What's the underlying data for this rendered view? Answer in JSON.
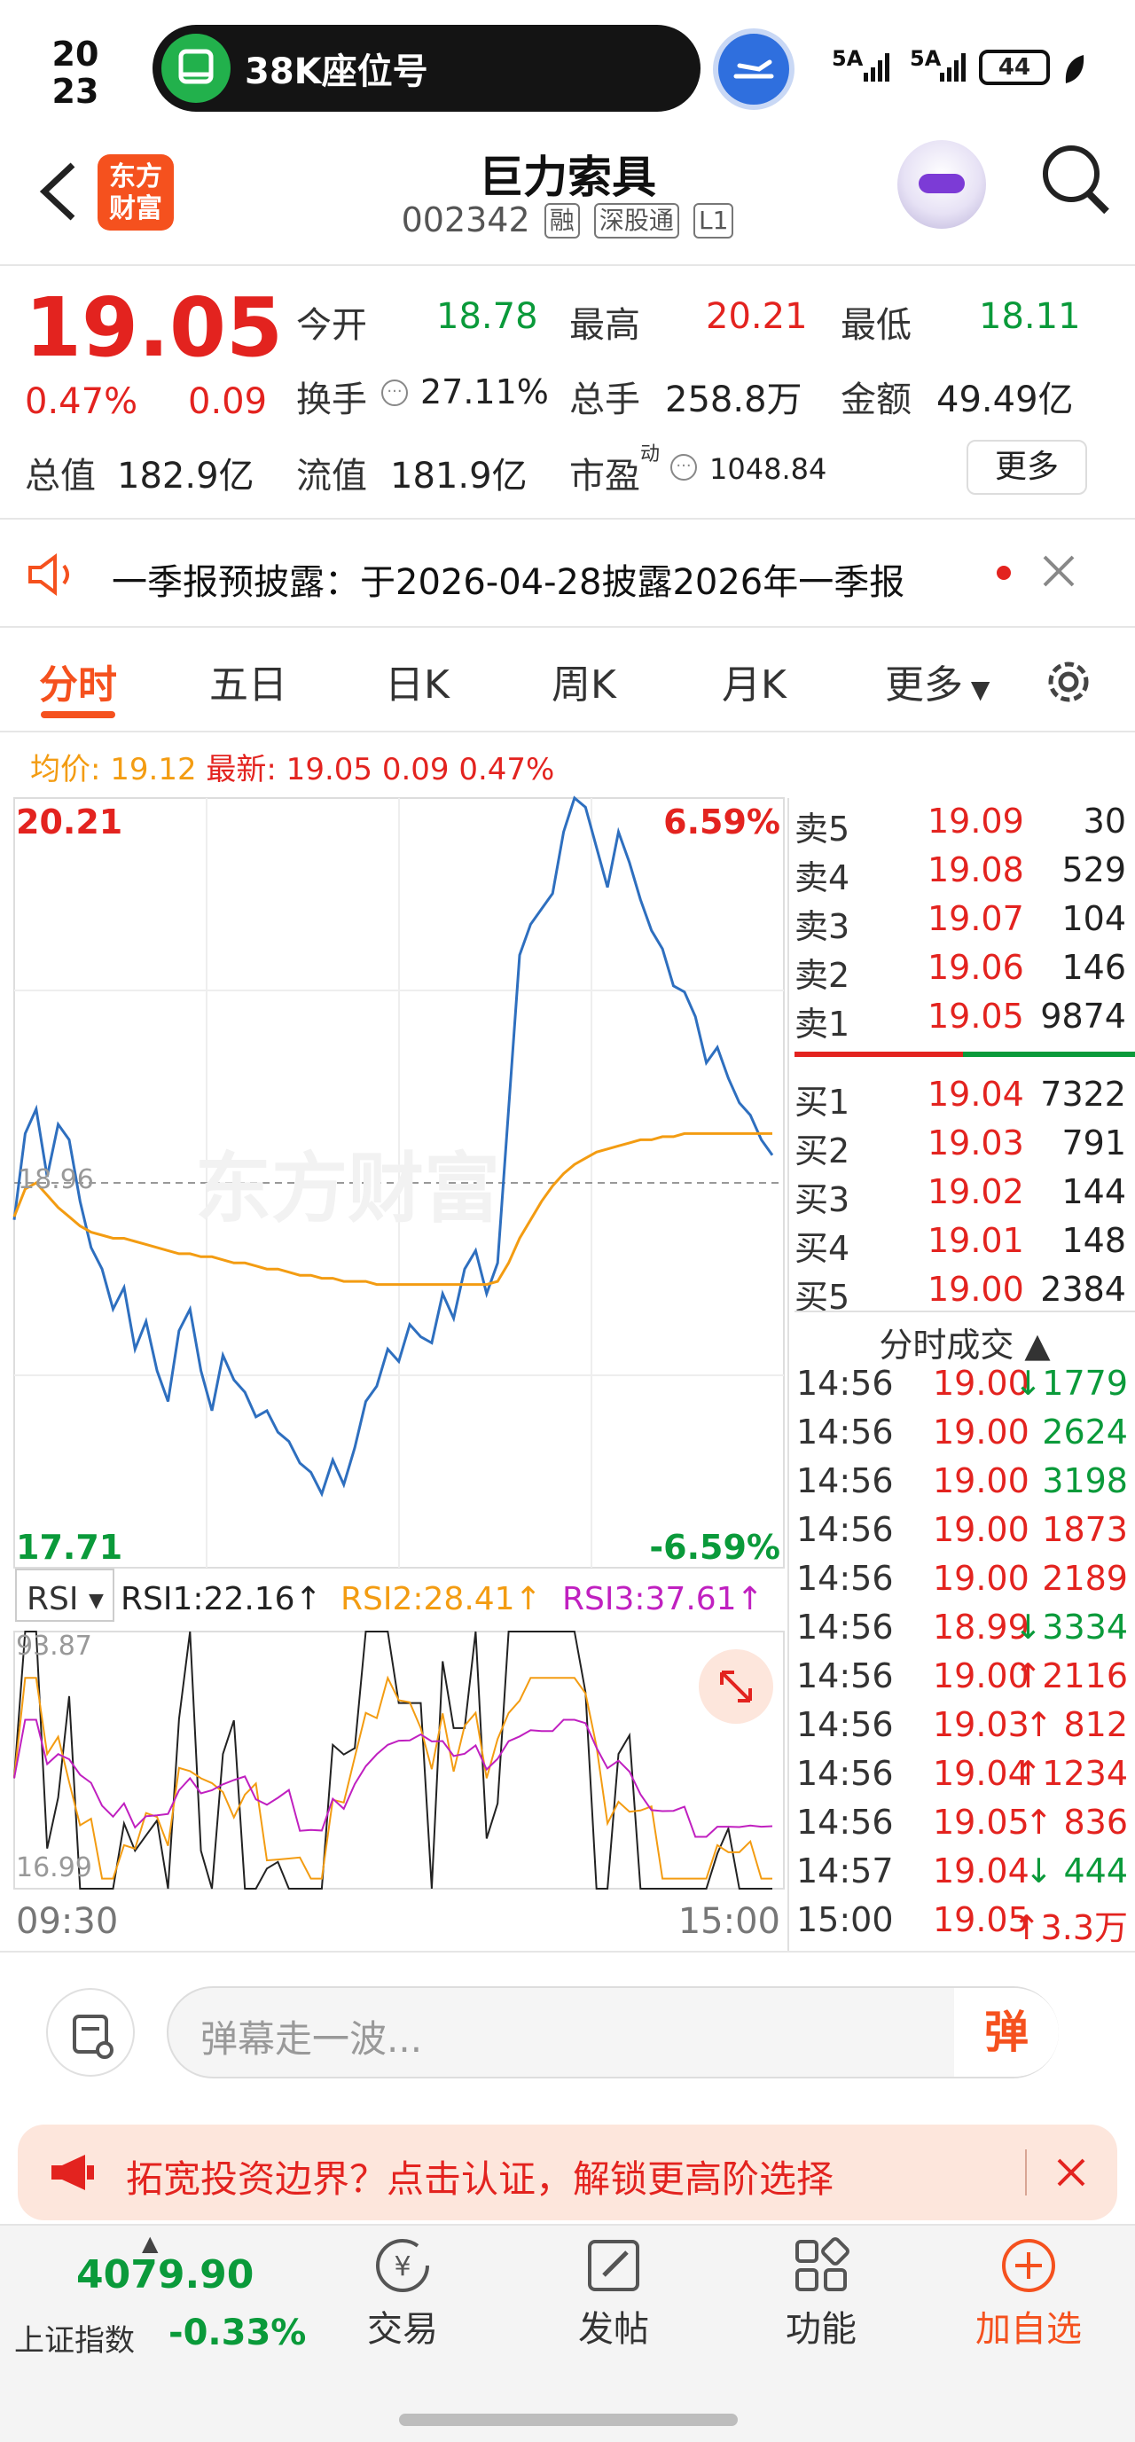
{
  "status_bar": {
    "time_hour": "20",
    "time_min": "23",
    "pill_text": "38K座位号",
    "signal1": "5A",
    "signal2": "5A",
    "battery": "44"
  },
  "header": {
    "logo_line1": "东方",
    "logo_line2": "财富",
    "stock_name": "巨力索具",
    "stock_code": "002342",
    "tags": [
      "融",
      "深股通",
      "L1"
    ]
  },
  "quote": {
    "price": "19.05",
    "change_pct": "0.47%",
    "change": "0.09",
    "open_label": "今开",
    "open": "18.78",
    "high_label": "最高",
    "high": "20.21",
    "low_label": "最低",
    "low": "18.11",
    "turnover_label": "换手",
    "turnover": "27.11%",
    "volume_label": "总手",
    "volume": "258.8万",
    "amount_label": "金额",
    "amount": "49.49亿",
    "mktcap_label": "总值",
    "mktcap": "182.9亿",
    "float_label": "流值",
    "float": "181.9亿",
    "pe_label": "市盈",
    "pe_sup": "动",
    "pe": "1048.84",
    "more": "更多"
  },
  "notice": {
    "text": "一季报预披露：于2026-04-28披露2026年一季报"
  },
  "tabs": {
    "t1": "分时",
    "t2": "五日",
    "t3": "日K",
    "t4": "周K",
    "t5": "月K",
    "t6": "更多"
  },
  "legend": {
    "avg_label": "均价: 19.12",
    "latest_label": "最新: 19.05 0.09 0.47%"
  },
  "chart_data": {
    "type": "line",
    "title": "",
    "x_ticks": [
      "09:30",
      "15:00"
    ],
    "ylim": [
      17.71,
      20.21
    ],
    "y_top_label": "20.21",
    "y_bottom_label": "17.71",
    "y_mid_label": "18.96",
    "pct_top": "6.59%",
    "pct_bottom": "-6.59%",
    "watermark": "东方财富",
    "series": [
      {
        "values": [
          18.84,
          19.12,
          19.2,
          18.98,
          19.15,
          19.1,
          18.9,
          18.75,
          18.68,
          18.55,
          18.62,
          18.42,
          18.51,
          18.35,
          18.25,
          18.48,
          18.55,
          18.35,
          18.22,
          18.4,
          18.32,
          18.28,
          18.2,
          18.22,
          18.15,
          18.12,
          18.05,
          18.02,
          17.95,
          18.06,
          17.98,
          18.1,
          18.25,
          18.3,
          18.42,
          18.38,
          18.5,
          18.46,
          18.44,
          18.6,
          18.52,
          18.68,
          18.74,
          18.6,
          18.7,
          19.2,
          19.7,
          19.8,
          19.85,
          19.9,
          20.1,
          20.21,
          20.18,
          20.05,
          19.92,
          20.1,
          20.0,
          19.88,
          19.78,
          19.72,
          19.6,
          19.58,
          19.5,
          19.35,
          19.4,
          19.3,
          19.22,
          19.18,
          19.1,
          19.05
        ]
      },
      {
        "values": [
          18.85,
          18.94,
          18.96,
          18.92,
          18.88,
          18.85,
          18.82,
          18.8,
          18.79,
          18.78,
          18.78,
          18.77,
          18.76,
          18.75,
          18.74,
          18.73,
          18.73,
          18.72,
          18.72,
          18.71,
          18.7,
          18.7,
          18.69,
          18.68,
          18.68,
          18.67,
          18.66,
          18.66,
          18.65,
          18.65,
          18.64,
          18.64,
          18.64,
          18.63,
          18.63,
          18.63,
          18.63,
          18.63,
          18.63,
          18.63,
          18.63,
          18.63,
          18.63,
          18.63,
          18.64,
          18.7,
          18.78,
          18.84,
          18.9,
          18.95,
          18.99,
          19.02,
          19.04,
          19.06,
          19.07,
          19.08,
          19.09,
          19.1,
          19.1,
          19.11,
          19.11,
          19.12,
          19.12,
          19.12,
          19.12,
          19.12,
          19.12,
          19.12,
          19.12,
          19.12
        ]
      }
    ]
  },
  "rsi": {
    "selector": "RSI",
    "rsi1": "RSI1:22.16↑",
    "rsi2": "RSI2:28.41↑",
    "rsi3": "RSI3:37.61↑",
    "top": "93.87",
    "bottom": "16.99",
    "start": "09:30",
    "end": "15:00"
  },
  "orderbook": {
    "asks": [
      {
        "label": "卖5",
        "price": "19.09",
        "vol": "30"
      },
      {
        "label": "卖4",
        "price": "19.08",
        "vol": "529"
      },
      {
        "label": "卖3",
        "price": "19.07",
        "vol": "104"
      },
      {
        "label": "卖2",
        "price": "19.06",
        "vol": "146"
      },
      {
        "label": "卖1",
        "price": "19.05",
        "vol": "9874"
      }
    ],
    "bids": [
      {
        "label": "买1",
        "price": "19.04",
        "vol": "7322"
      },
      {
        "label": "买2",
        "price": "19.03",
        "vol": "791"
      },
      {
        "label": "买3",
        "price": "19.02",
        "vol": "144"
      },
      {
        "label": "买4",
        "price": "19.01",
        "vol": "148"
      },
      {
        "label": "买5",
        "price": "19.00",
        "vol": "2384"
      }
    ]
  },
  "ticks": {
    "title": "分时成交 ▲",
    "rows": [
      {
        "time": "14:56",
        "price": "19.00",
        "vol": "↓1779",
        "color": "#0a9a3a"
      },
      {
        "time": "14:56",
        "price": "19.00",
        "vol": "2624",
        "color": "#0a9a3a"
      },
      {
        "time": "14:56",
        "price": "19.00",
        "vol": "3198",
        "color": "#0a9a3a"
      },
      {
        "time": "14:56",
        "price": "19.00",
        "vol": "1873",
        "color": "#e3231f"
      },
      {
        "time": "14:56",
        "price": "19.00",
        "vol": "2189",
        "color": "#e3231f"
      },
      {
        "time": "14:56",
        "price": "18.99",
        "vol": "↓3334",
        "color": "#0a9a3a"
      },
      {
        "time": "14:56",
        "price": "19.00",
        "vol": "↑2116",
        "color": "#e3231f"
      },
      {
        "time": "14:56",
        "price": "19.03",
        "vol": "↑ 812",
        "color": "#e3231f"
      },
      {
        "time": "14:56",
        "price": "19.04",
        "vol": "↑1234",
        "color": "#e3231f"
      },
      {
        "time": "14:56",
        "price": "19.05",
        "vol": "↑ 836",
        "color": "#e3231f"
      },
      {
        "time": "14:57",
        "price": "19.04",
        "vol": "↓ 444",
        "color": "#0a9a3a"
      },
      {
        "time": "15:00",
        "price": "19.05",
        "vol": "↑3.3万",
        "color": "#e3231f"
      }
    ]
  },
  "comment": {
    "placeholder": "弹幕走一波...",
    "send": "弹"
  },
  "promo": {
    "text": "拓宽投资边界？点击认证，解锁更高阶选择"
  },
  "bottom": {
    "index_value": "4079.90",
    "index_name": "上证指数",
    "index_pct": "-0.33%",
    "nav": [
      "交易",
      "发帖",
      "功能",
      "加自选"
    ]
  }
}
